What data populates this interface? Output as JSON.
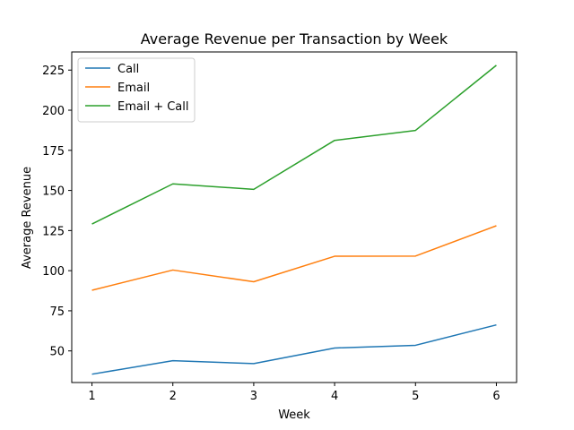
{
  "chart_data": {
    "type": "line",
    "title": "Average Revenue per Transaction by Week",
    "xlabel": "Week",
    "ylabel": "Average Revenue",
    "x": [
      1,
      2,
      3,
      4,
      5,
      6
    ],
    "x_ticks": [
      "1",
      "2",
      "3",
      "4",
      "5",
      "6"
    ],
    "y_ticks": [
      "50",
      "75",
      "100",
      "125",
      "150",
      "175",
      "200",
      "225"
    ],
    "xlim": [
      0.75,
      6.25
    ],
    "ylim": [
      30.3,
      236.3
    ],
    "grid": false,
    "legend_position": "top-left",
    "series": [
      {
        "name": "Call",
        "color": "#1f77b4",
        "values": [
          35.5,
          43.9,
          42.1,
          51.8,
          53.5,
          66.2
        ]
      },
      {
        "name": "Email",
        "color": "#ff7f0e",
        "values": [
          87.8,
          100.4,
          93.1,
          109.0,
          109.1,
          128.0
        ]
      },
      {
        "name": "Email + Call",
        "color": "#2ca02c",
        "values": [
          129.1,
          154.1,
          150.7,
          181.2,
          187.4,
          228.0
        ]
      }
    ]
  }
}
